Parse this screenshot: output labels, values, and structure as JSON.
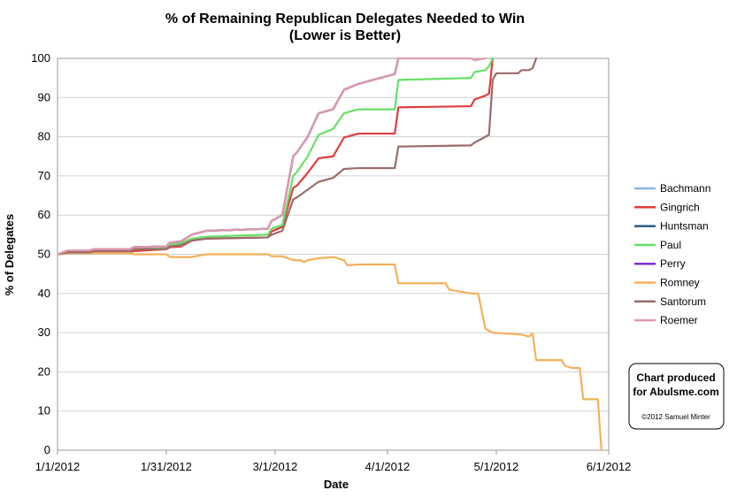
{
  "chart_data": {
    "type": "line",
    "title": "% of Remaining Republican Delegates Needed to Win",
    "subtitle": "(Lower is Better)",
    "xlabel": "Date",
    "ylabel": "% of Delegates",
    "x_tick_labels": [
      "1/1/2012",
      "1/31/2012",
      "3/1/2012",
      "4/1/2012",
      "5/1/2012",
      "6/1/2012"
    ],
    "y_tick_labels": [
      "0",
      "10",
      "20",
      "30",
      "40",
      "50",
      "60",
      "70",
      "80",
      "90",
      "100"
    ],
    "xlim": [
      "2012-01-01",
      "2012-06-01"
    ],
    "ylim": [
      0,
      100
    ],
    "grid": "horizontal",
    "legend_position": "right",
    "series": [
      {
        "name": "Bachmann",
        "color": "#8ab4e8",
        "points": [
          [
            "2012-01-01",
            50
          ],
          [
            "2012-01-04",
            51
          ],
          [
            "2012-01-10",
            51
          ],
          [
            "2012-01-11",
            51.3
          ],
          [
            "2012-01-21",
            51.3
          ],
          [
            "2012-01-22",
            51.8
          ],
          [
            "2012-01-31",
            52
          ],
          [
            "2012-02-01",
            53
          ],
          [
            "2012-02-04",
            53.3
          ],
          [
            "2012-02-07",
            55
          ],
          [
            "2012-02-11",
            56
          ],
          [
            "2012-02-28",
            56.5
          ],
          [
            "2012-02-29",
            58.5
          ],
          [
            "2012-03-03",
            60
          ],
          [
            "2012-03-06",
            75
          ],
          [
            "2012-03-07",
            76
          ],
          [
            "2012-03-10",
            80
          ],
          [
            "2012-03-13",
            86
          ],
          [
            "2012-03-17",
            87
          ],
          [
            "2012-03-20",
            92
          ],
          [
            "2012-03-24",
            93.5
          ],
          [
            "2012-04-03",
            96
          ],
          [
            "2012-04-04",
            100
          ]
        ]
      },
      {
        "name": "Gingrich",
        "color": "#e03c3c",
        "points": [
          [
            "2012-01-01",
            50
          ],
          [
            "2012-01-04",
            50.3
          ],
          [
            "2012-01-10",
            50.3
          ],
          [
            "2012-01-11",
            50.6
          ],
          [
            "2012-01-21",
            50.6
          ],
          [
            "2012-01-22",
            50.8
          ],
          [
            "2012-01-31",
            51.3
          ],
          [
            "2012-02-01",
            51.8
          ],
          [
            "2012-02-04",
            52
          ],
          [
            "2012-02-07",
            53.5
          ],
          [
            "2012-02-11",
            54
          ],
          [
            "2012-02-28",
            54.3
          ],
          [
            "2012-02-29",
            55.8
          ],
          [
            "2012-03-03",
            57
          ],
          [
            "2012-03-06",
            67
          ],
          [
            "2012-03-07",
            67.5
          ],
          [
            "2012-03-10",
            70.8
          ],
          [
            "2012-03-13",
            74.5
          ],
          [
            "2012-03-17",
            75
          ],
          [
            "2012-03-20",
            79.8
          ],
          [
            "2012-03-24",
            80.8
          ],
          [
            "2012-04-03",
            80.8
          ],
          [
            "2012-04-04",
            87.5
          ],
          [
            "2012-04-24",
            87.8
          ],
          [
            "2012-04-25",
            89.5
          ],
          [
            "2012-04-28",
            90.5
          ],
          [
            "2012-04-29",
            91
          ],
          [
            "2012-04-30",
            100
          ]
        ]
      },
      {
        "name": "Huntsman",
        "color": "#2b5a85",
        "points": [
          [
            "2012-01-01",
            50
          ],
          [
            "2012-01-04",
            51
          ],
          [
            "2012-01-10",
            51
          ],
          [
            "2012-01-11",
            51.3
          ],
          [
            "2012-01-21",
            51.3
          ],
          [
            "2012-01-22",
            51.8
          ],
          [
            "2012-01-31",
            52
          ],
          [
            "2012-02-01",
            53
          ],
          [
            "2012-02-04",
            53.3
          ],
          [
            "2012-02-07",
            55
          ],
          [
            "2012-02-11",
            56
          ],
          [
            "2012-02-28",
            56.5
          ],
          [
            "2012-02-29",
            58.5
          ],
          [
            "2012-03-03",
            60
          ],
          [
            "2012-03-06",
            75
          ],
          [
            "2012-03-07",
            76
          ],
          [
            "2012-03-10",
            80
          ],
          [
            "2012-03-13",
            86
          ],
          [
            "2012-03-17",
            87
          ],
          [
            "2012-03-20",
            92
          ],
          [
            "2012-03-24",
            93.5
          ],
          [
            "2012-04-03",
            96
          ],
          [
            "2012-04-04",
            100
          ]
        ]
      },
      {
        "name": "Paul",
        "color": "#66e066",
        "points": [
          [
            "2012-01-01",
            50
          ],
          [
            "2012-01-04",
            50.5
          ],
          [
            "2012-01-10",
            50.5
          ],
          [
            "2012-01-11",
            50.8
          ],
          [
            "2012-01-21",
            50.8
          ],
          [
            "2012-01-22",
            51.3
          ],
          [
            "2012-01-31",
            51.8
          ],
          [
            "2012-02-01",
            52.5
          ],
          [
            "2012-02-04",
            52.8
          ],
          [
            "2012-02-07",
            54
          ],
          [
            "2012-02-11",
            54.5
          ],
          [
            "2012-02-28",
            55
          ],
          [
            "2012-02-29",
            56.5
          ],
          [
            "2012-03-03",
            57.5
          ],
          [
            "2012-03-06",
            70
          ],
          [
            "2012-03-07",
            71
          ],
          [
            "2012-03-10",
            75
          ],
          [
            "2012-03-13",
            80.5
          ],
          [
            "2012-03-17",
            82
          ],
          [
            "2012-03-20",
            86
          ],
          [
            "2012-03-24",
            87
          ],
          [
            "2012-04-03",
            87
          ],
          [
            "2012-04-04",
            94.5
          ],
          [
            "2012-04-24",
            95
          ],
          [
            "2012-04-25",
            96.5
          ],
          [
            "2012-04-28",
            97
          ],
          [
            "2012-04-29",
            98
          ],
          [
            "2012-04-30",
            100
          ]
        ]
      },
      {
        "name": "Perry",
        "color": "#7a2fd1",
        "points": [
          [
            "2012-01-01",
            50
          ],
          [
            "2012-01-04",
            51
          ],
          [
            "2012-01-10",
            51
          ],
          [
            "2012-01-11",
            51.3
          ],
          [
            "2012-01-21",
            51.3
          ],
          [
            "2012-01-22",
            51.8
          ],
          [
            "2012-01-31",
            52
          ],
          [
            "2012-02-01",
            53
          ],
          [
            "2012-02-04",
            53.3
          ],
          [
            "2012-02-07",
            55
          ],
          [
            "2012-02-11",
            56
          ],
          [
            "2012-02-28",
            56.5
          ],
          [
            "2012-02-29",
            58.5
          ],
          [
            "2012-03-03",
            60
          ],
          [
            "2012-03-06",
            75
          ],
          [
            "2012-03-07",
            76
          ],
          [
            "2012-03-10",
            80
          ],
          [
            "2012-03-13",
            86
          ],
          [
            "2012-03-17",
            87
          ],
          [
            "2012-03-20",
            92
          ],
          [
            "2012-03-24",
            93.5
          ],
          [
            "2012-04-03",
            96
          ],
          [
            "2012-04-04",
            100
          ]
        ]
      },
      {
        "name": "Romney",
        "color": "#f5b05a",
        "points": [
          [
            "2012-01-01",
            50
          ],
          [
            "2012-01-04",
            50.3
          ],
          [
            "2012-01-21",
            50.3
          ],
          [
            "2012-01-22",
            50
          ],
          [
            "2012-01-31",
            50
          ],
          [
            "2012-02-01",
            49.3
          ],
          [
            "2012-02-07",
            49.3
          ],
          [
            "2012-02-11",
            50
          ],
          [
            "2012-02-28",
            50
          ],
          [
            "2012-02-29",
            49.5
          ],
          [
            "2012-03-03",
            49.5
          ],
          [
            "2012-03-06",
            48.5
          ],
          [
            "2012-03-08",
            48.5
          ],
          [
            "2012-03-09",
            48
          ],
          [
            "2012-03-10",
            48.5
          ],
          [
            "2012-03-13",
            49
          ],
          [
            "2012-03-17",
            49.3
          ],
          [
            "2012-03-20",
            48.5
          ],
          [
            "2012-03-21",
            47.2
          ],
          [
            "2012-03-24",
            47.4
          ],
          [
            "2012-04-03",
            47.4
          ],
          [
            "2012-04-04",
            42.6
          ],
          [
            "2012-04-17",
            42.6
          ],
          [
            "2012-04-18",
            41
          ],
          [
            "2012-04-24",
            40
          ],
          [
            "2012-04-26",
            40
          ],
          [
            "2012-04-28",
            31
          ],
          [
            "2012-04-30",
            30
          ],
          [
            "2012-05-08",
            29.5
          ],
          [
            "2012-05-10",
            29
          ],
          [
            "2012-05-11",
            29.8
          ],
          [
            "2012-05-12",
            23
          ],
          [
            "2012-05-19",
            23
          ],
          [
            "2012-05-20",
            21.5
          ],
          [
            "2012-05-22",
            21
          ],
          [
            "2012-05-24",
            21
          ],
          [
            "2012-05-25",
            13
          ],
          [
            "2012-05-29",
            13
          ],
          [
            "2012-05-30",
            0
          ]
        ]
      },
      {
        "name": "Santorum",
        "color": "#9c6b6b",
        "points": [
          [
            "2012-01-01",
            50
          ],
          [
            "2012-01-04",
            50.5
          ],
          [
            "2012-01-10",
            50.5
          ],
          [
            "2012-01-11",
            50.8
          ],
          [
            "2012-01-21",
            50.8
          ],
          [
            "2012-01-22",
            51.3
          ],
          [
            "2012-01-31",
            51.3
          ],
          [
            "2012-02-01",
            52
          ],
          [
            "2012-02-04",
            52.3
          ],
          [
            "2012-02-07",
            53.5
          ],
          [
            "2012-02-11",
            54
          ],
          [
            "2012-02-28",
            54.3
          ],
          [
            "2012-02-29",
            55
          ],
          [
            "2012-03-03",
            56
          ],
          [
            "2012-03-06",
            64
          ],
          [
            "2012-03-07",
            64.5
          ],
          [
            "2012-03-10",
            66.5
          ],
          [
            "2012-03-13",
            68.5
          ],
          [
            "2012-03-17",
            69.5
          ],
          [
            "2012-03-20",
            71.8
          ],
          [
            "2012-03-24",
            72
          ],
          [
            "2012-04-03",
            72
          ],
          [
            "2012-04-04",
            77.5
          ],
          [
            "2012-04-24",
            77.8
          ],
          [
            "2012-04-25",
            78.5
          ],
          [
            "2012-04-28",
            80
          ],
          [
            "2012-04-29",
            80.5
          ],
          [
            "2012-04-30",
            94.5
          ],
          [
            "2012-05-01",
            96.2
          ],
          [
            "2012-05-07",
            96.2
          ],
          [
            "2012-05-08",
            97
          ],
          [
            "2012-05-10",
            97
          ],
          [
            "2012-05-11",
            97.5
          ],
          [
            "2012-05-12",
            100
          ]
        ]
      },
      {
        "name": "Roemer",
        "color": "#e09aaa",
        "points": [
          [
            "2012-01-01",
            50
          ],
          [
            "2012-01-04",
            51
          ],
          [
            "2012-01-10",
            51
          ],
          [
            "2012-01-11",
            51.3
          ],
          [
            "2012-01-21",
            51.3
          ],
          [
            "2012-01-22",
            51.8
          ],
          [
            "2012-01-31",
            52
          ],
          [
            "2012-02-01",
            53
          ],
          [
            "2012-02-04",
            53.3
          ],
          [
            "2012-02-07",
            55
          ],
          [
            "2012-02-11",
            56
          ],
          [
            "2012-02-28",
            56.5
          ],
          [
            "2012-02-29",
            58.5
          ],
          [
            "2012-03-03",
            60
          ],
          [
            "2012-03-06",
            75
          ],
          [
            "2012-03-07",
            76
          ],
          [
            "2012-03-10",
            80
          ],
          [
            "2012-03-13",
            86
          ],
          [
            "2012-03-17",
            87
          ],
          [
            "2012-03-20",
            92
          ],
          [
            "2012-03-24",
            93.5
          ],
          [
            "2012-04-03",
            96
          ],
          [
            "2012-04-04",
            100
          ],
          [
            "2012-04-24",
            100
          ],
          [
            "2012-04-25",
            99.5
          ],
          [
            "2012-04-28",
            100
          ]
        ]
      }
    ]
  },
  "credit": {
    "line1": "Chart produced",
    "line2": "for Abulsme.com",
    "line3": "©2012 Samuel Minter"
  }
}
